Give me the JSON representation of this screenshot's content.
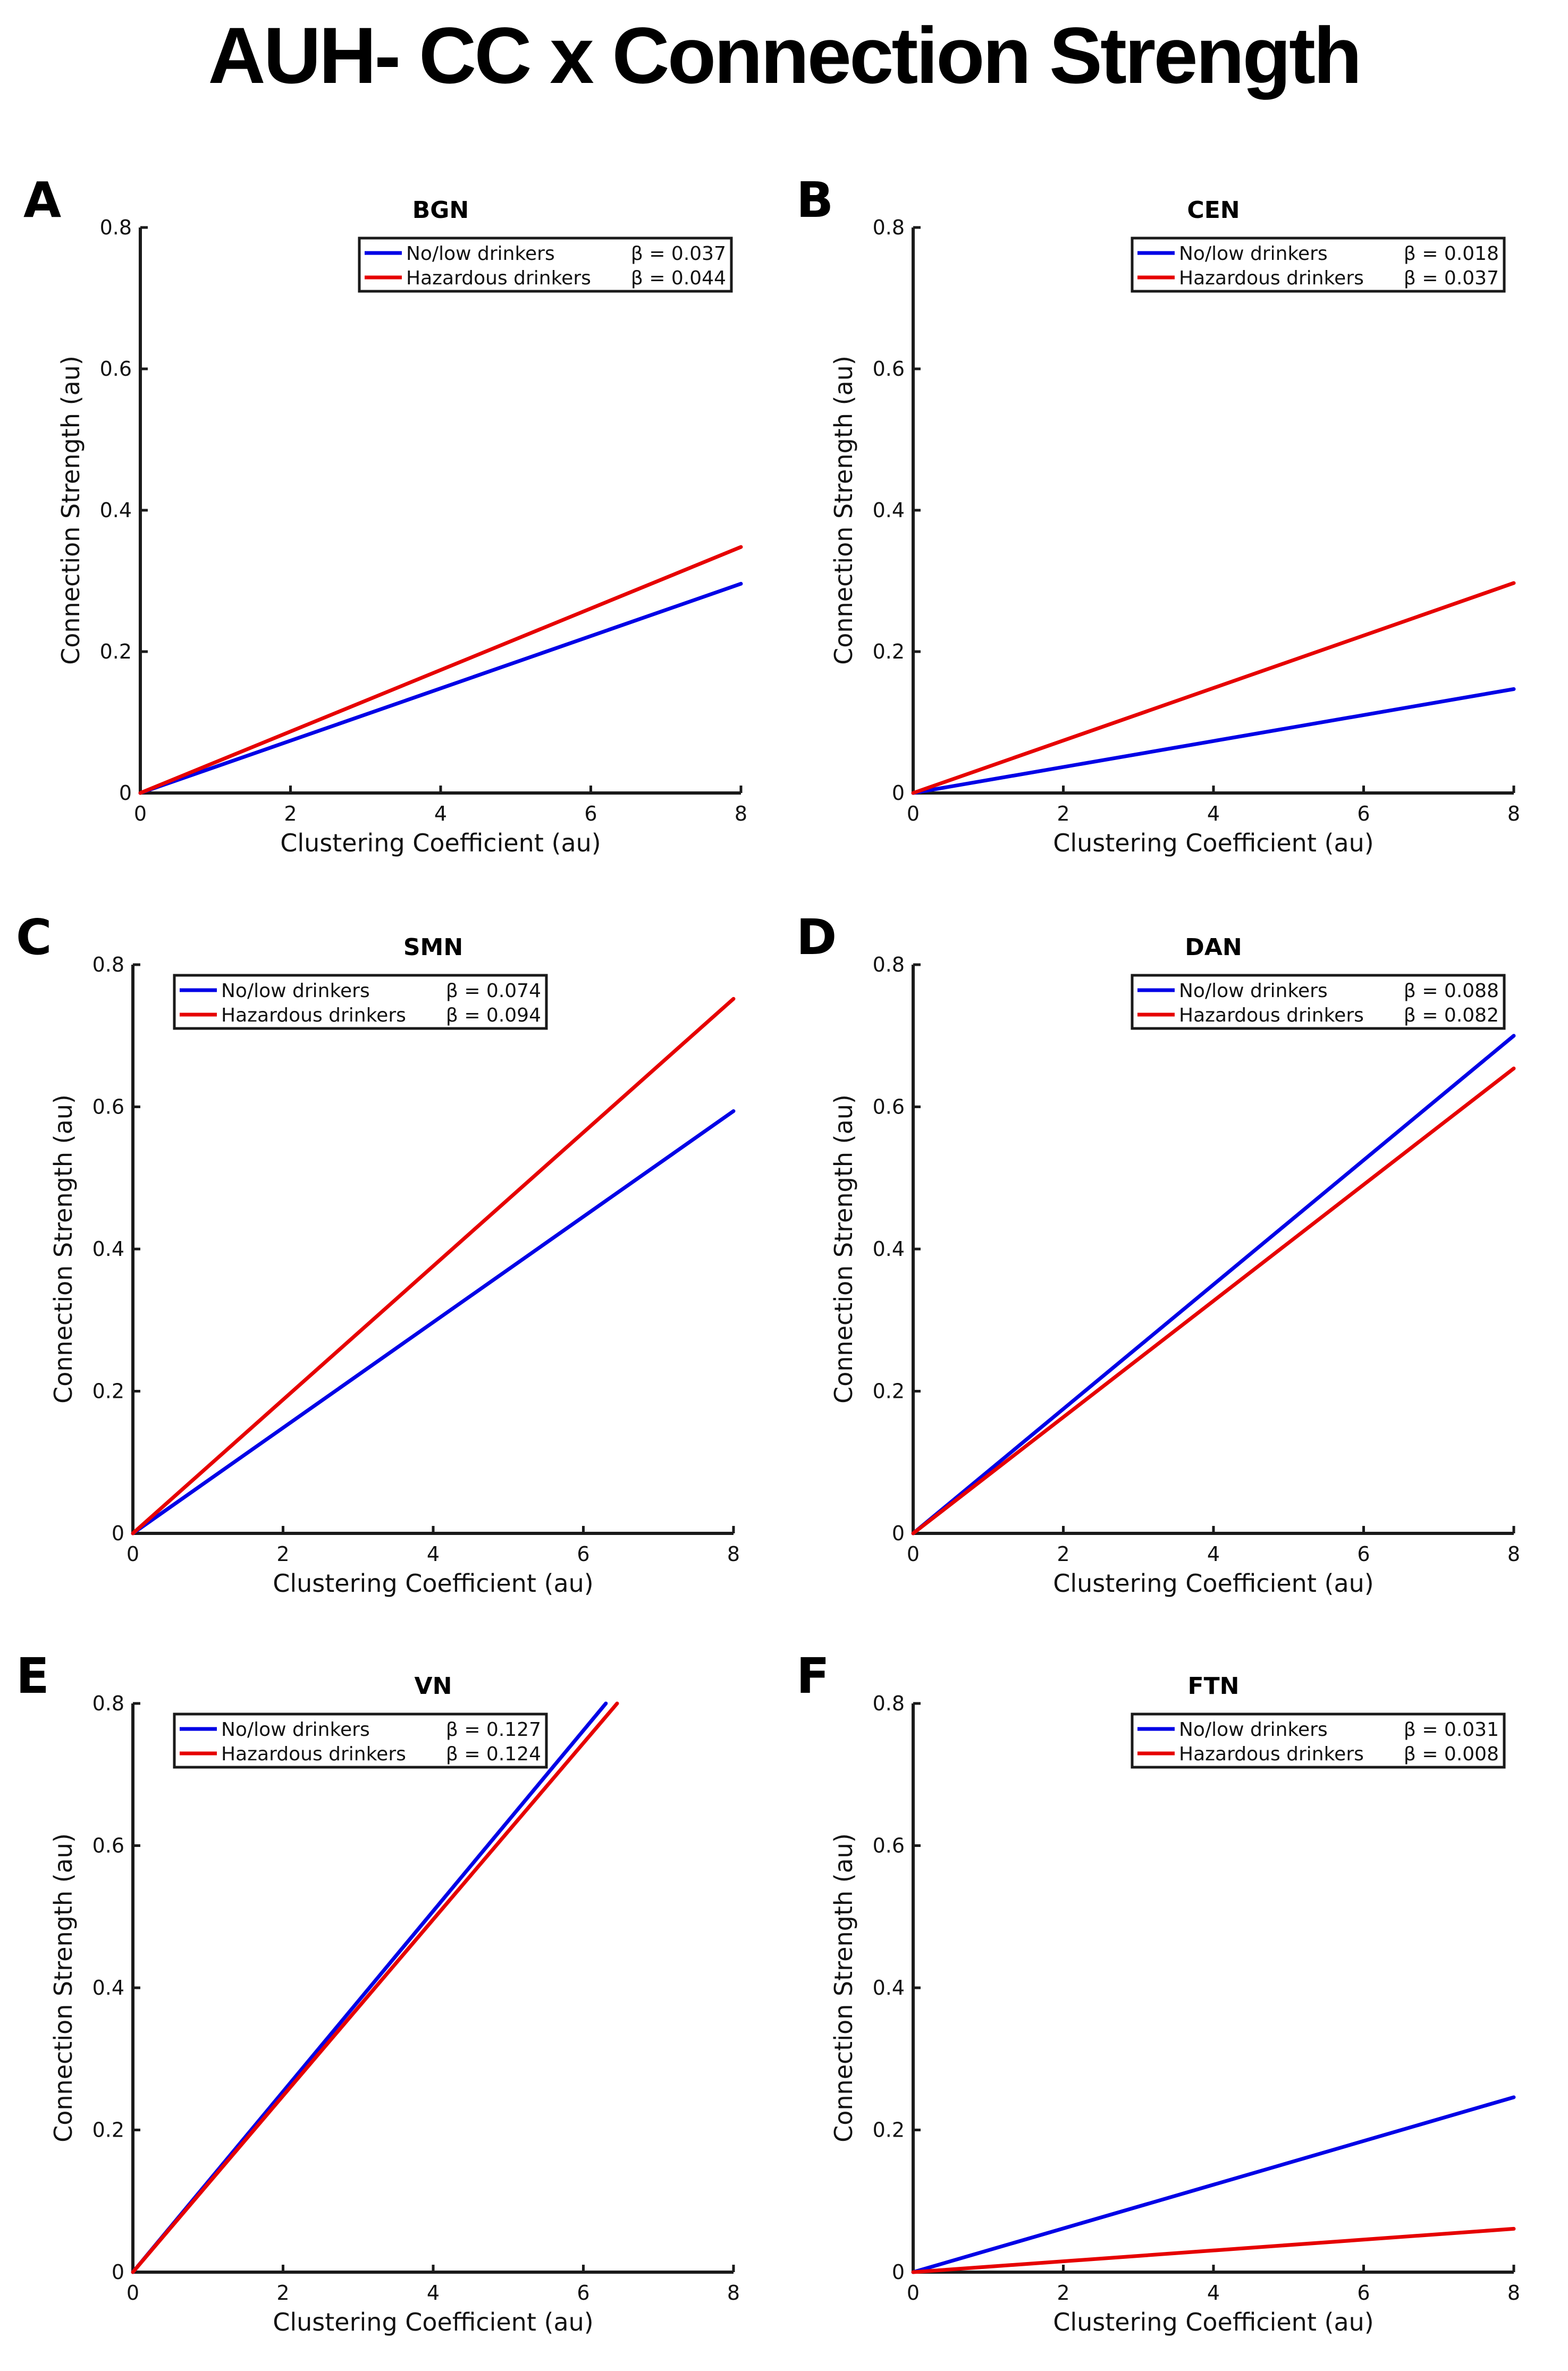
{
  "figure_title": "AUH- CC x Connection Strength",
  "colors": {
    "blue": "#0000e6",
    "red": "#e60000",
    "axis": "#1a1a1a"
  },
  "chart_data": [
    {
      "panel_label": "A",
      "type": "line",
      "title": "BGN",
      "xlabel": "Clustering Coefficient (au)",
      "ylabel": "Connection Strength (au)",
      "xlim": [
        0,
        8
      ],
      "ylim": [
        0,
        0.8
      ],
      "xticks": [
        "0",
        "2",
        "4",
        "6",
        "8"
      ],
      "yticks": [
        "0",
        "0.2",
        "0.4",
        "0.6",
        "0.8"
      ],
      "legend_position": "top-right",
      "series": [
        {
          "name": "No/low drinkers",
          "beta": "β = 0.037",
          "color": "blue",
          "x": [
            0,
            8
          ],
          "y": [
            0,
            0.296
          ]
        },
        {
          "name": "Hazardous drinkers",
          "beta": "β = 0.044",
          "color": "red",
          "x": [
            0,
            8
          ],
          "y": [
            0,
            0.348
          ]
        }
      ]
    },
    {
      "panel_label": "B",
      "type": "line",
      "title": "CEN",
      "xlabel": "Clustering Coefficient (au)",
      "ylabel": "Connection Strength (au)",
      "xlim": [
        0,
        8
      ],
      "ylim": [
        0,
        0.8
      ],
      "xticks": [
        "0",
        "2",
        "4",
        "6",
        "8"
      ],
      "yticks": [
        "0",
        "0.2",
        "0.4",
        "0.6",
        "0.8"
      ],
      "legend_position": "top-right",
      "series": [
        {
          "name": "No/low drinkers",
          "beta": "β = 0.018",
          "color": "blue",
          "x": [
            0,
            8
          ],
          "y": [
            0,
            0.147
          ]
        },
        {
          "name": "Hazardous drinkers",
          "beta": "β = 0.037",
          "color": "red",
          "x": [
            0,
            8
          ],
          "y": [
            0,
            0.297
          ]
        }
      ]
    },
    {
      "panel_label": "C",
      "type": "line",
      "title": "SMN",
      "xlabel": "Clustering Coefficient (au)",
      "ylabel": "Connection Strength (au)",
      "xlim": [
        0,
        8
      ],
      "ylim": [
        0,
        0.8
      ],
      "xticks": [
        "0",
        "2",
        "4",
        "6",
        "8"
      ],
      "yticks": [
        "0",
        "0.2",
        "0.4",
        "0.6",
        "0.8"
      ],
      "legend_position": "top-left",
      "series": [
        {
          "name": "No/low drinkers",
          "beta": "β = 0.074",
          "color": "blue",
          "x": [
            0,
            8
          ],
          "y": [
            0,
            0.594
          ]
        },
        {
          "name": "Hazardous drinkers",
          "beta": "β = 0.094",
          "color": "red",
          "x": [
            0,
            8
          ],
          "y": [
            0,
            0.752
          ]
        }
      ]
    },
    {
      "panel_label": "D",
      "type": "line",
      "title": "DAN",
      "xlabel": "Clustering Coefficient (au)",
      "ylabel": "Connection Strength (au)",
      "xlim": [
        0,
        8
      ],
      "ylim": [
        0,
        0.8
      ],
      "xticks": [
        "0",
        "2",
        "4",
        "6",
        "8"
      ],
      "yticks": [
        "0",
        "0.2",
        "0.4",
        "0.6",
        "0.8"
      ],
      "legend_position": "top-right",
      "series": [
        {
          "name": "No/low drinkers",
          "beta": "β = 0.088",
          "color": "blue",
          "x": [
            0,
            8
          ],
          "y": [
            0,
            0.7
          ]
        },
        {
          "name": "Hazardous drinkers",
          "beta": "β = 0.082",
          "color": "red",
          "x": [
            0,
            8
          ],
          "y": [
            0,
            0.654
          ]
        }
      ]
    },
    {
      "panel_label": "E",
      "type": "line",
      "title": "VN",
      "xlabel": "Clustering Coefficient (au)",
      "ylabel": "Connection Strength (au)",
      "xlim": [
        0,
        8
      ],
      "ylim": [
        0,
        0.8
      ],
      "xticks": [
        "0",
        "2",
        "4",
        "6",
        "8"
      ],
      "yticks": [
        "0",
        "0.2",
        "0.4",
        "0.6",
        "0.8"
      ],
      "legend_position": "top-left",
      "series": [
        {
          "name": "No/low drinkers",
          "beta": "β = 0.127",
          "color": "blue",
          "x": [
            0,
            6.3
          ],
          "y": [
            0,
            0.8
          ]
        },
        {
          "name": "Hazardous drinkers",
          "beta": "β = 0.124",
          "color": "red",
          "x": [
            0,
            6.45
          ],
          "y": [
            0,
            0.8
          ]
        }
      ]
    },
    {
      "panel_label": "F",
      "type": "line",
      "title": "FTN",
      "xlabel": "Clustering Coefficient (au)",
      "ylabel": "Connection Strength (au)",
      "xlim": [
        0,
        8
      ],
      "ylim": [
        0,
        0.8
      ],
      "xticks": [
        "0",
        "2",
        "4",
        "6",
        "8"
      ],
      "yticks": [
        "0",
        "0.2",
        "0.4",
        "0.6",
        "0.8"
      ],
      "legend_position": "top-right",
      "series": [
        {
          "name": "No/low drinkers",
          "beta": "β = 0.031",
          "color": "blue",
          "x": [
            0,
            8
          ],
          "y": [
            0,
            0.246
          ]
        },
        {
          "name": "Hazardous drinkers",
          "beta": "β = 0.008",
          "color": "red",
          "x": [
            0,
            8
          ],
          "y": [
            0,
            0.061
          ]
        }
      ]
    }
  ]
}
